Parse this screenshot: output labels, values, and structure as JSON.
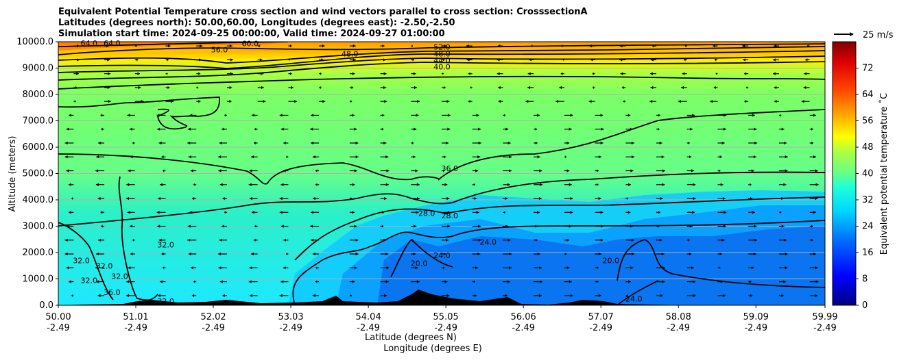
{
  "chart_data": {
    "type": "contour",
    "title_lines": [
      "Equivalent Potential Temperature cross section and wind vectors parallel to cross section: CrosssectionA",
      "Latitudes (degrees north): 50.00,60.00, Longitudes (degrees east): -2.50,-2.50",
      "Simulation start time: 2024-09-25 00:00:00, Valid time: 2024-09-27 01:00:00"
    ],
    "ylabel": "Altitude (meters)",
    "xlabel": "Latitude (degrees N)",
    "xlabel2": "Longitude (degrees E)",
    "ylim": [
      0,
      10000
    ],
    "xlim": [
      50.0,
      59.99
    ],
    "yticks": [
      "0.0",
      "1000.0",
      "2000.0",
      "3000.0",
      "4000.0",
      "5000.0",
      "6000.0",
      "7000.0",
      "8000.0",
      "9000.0",
      "10000.0"
    ],
    "ytick_values": [
      0,
      1000,
      2000,
      3000,
      4000,
      5000,
      6000,
      7000,
      8000,
      9000,
      10000
    ],
    "xticks": [
      {
        "lat": "50.00",
        "lon": "-2.49",
        "value": 50.0
      },
      {
        "lat": "51.01",
        "lon": "-2.49",
        "value": 51.01
      },
      {
        "lat": "52.02",
        "lon": "-2.49",
        "value": 52.02
      },
      {
        "lat": "53.03",
        "lon": "-2.49",
        "value": 53.03
      },
      {
        "lat": "54.04",
        "lon": "-2.49",
        "value": 54.04
      },
      {
        "lat": "55.05",
        "lon": "-2.49",
        "value": 55.05
      },
      {
        "lat": "56.06",
        "lon": "-2.49",
        "value": 56.06
      },
      {
        "lat": "57.07",
        "lon": "-2.49",
        "value": 57.07
      },
      {
        "lat": "58.08",
        "lon": "-2.49",
        "value": 58.08
      },
      {
        "lat": "59.09",
        "lon": "-2.49",
        "value": 59.09
      },
      {
        "lat": "59.99",
        "lon": "-2.49",
        "value": 59.99
      }
    ],
    "grid": "horizontal",
    "colorbar": {
      "label": "Equivalent potential temperature ˚C",
      "range": [
        0,
        80
      ],
      "ticks": [
        "0",
        "8",
        "16",
        "24",
        "32",
        "40",
        "48",
        "56",
        "64",
        "72"
      ],
      "tick_values": [
        0,
        8,
        16,
        24,
        32,
        40,
        48,
        56,
        64,
        72
      ]
    },
    "contour_labels": [
      {
        "text": "64.0",
        "x": 50.4,
        "y": 9950
      },
      {
        "text": "64.0",
        "x": 50.7,
        "y": 9950
      },
      {
        "text": "60.0",
        "x": 52.5,
        "y": 9930
      },
      {
        "text": "56.0",
        "x": 52.1,
        "y": 9700
      },
      {
        "text": "48.0",
        "x": 53.8,
        "y": 9550
      },
      {
        "text": "52.0",
        "x": 55.0,
        "y": 9800
      },
      {
        "text": "48.0",
        "x": 55.0,
        "y": 9550
      },
      {
        "text": "44.0",
        "x": 55.0,
        "y": 9300
      },
      {
        "text": "40.0",
        "x": 55.0,
        "y": 9050
      },
      {
        "text": "36.0",
        "x": 55.1,
        "y": 5200
      },
      {
        "text": "28.0",
        "x": 54.8,
        "y": 3500
      },
      {
        "text": "28.0",
        "x": 55.1,
        "y": 3400
      },
      {
        "text": "24.0",
        "x": 55.6,
        "y": 2400
      },
      {
        "text": "24.0",
        "x": 55.0,
        "y": 1900
      },
      {
        "text": "20.0",
        "x": 54.7,
        "y": 1600
      },
      {
        "text": "20.0",
        "x": 57.2,
        "y": 1700
      },
      {
        "text": "24.0",
        "x": 57.5,
        "y": 250
      },
      {
        "text": "32.0",
        "x": 51.4,
        "y": 2300
      },
      {
        "text": "32.0",
        "x": 50.3,
        "y": 1700
      },
      {
        "text": "32.0",
        "x": 50.6,
        "y": 1500
      },
      {
        "text": "32.0",
        "x": 50.8,
        "y": 1100
      },
      {
        "text": "32.0",
        "x": 50.4,
        "y": 950
      },
      {
        "text": "36.0",
        "x": 50.7,
        "y": 500
      },
      {
        "text": "32.0",
        "x": 51.4,
        "y": 150
      }
    ],
    "wind_reference": {
      "label": "25 m/s",
      "value": 25
    }
  }
}
